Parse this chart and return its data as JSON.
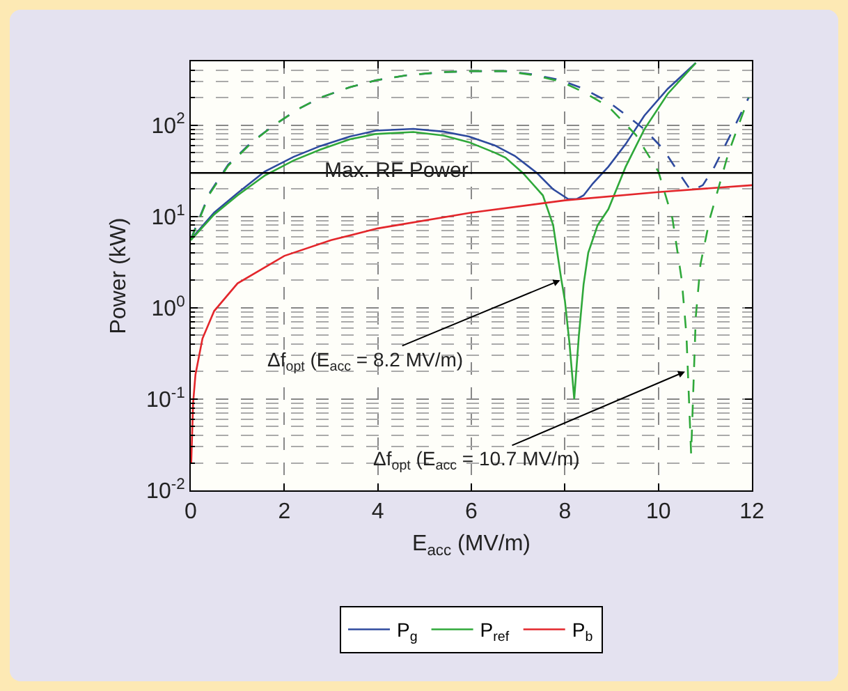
{
  "chart_data": {
    "type": "line",
    "xlabel": "E$_{acc}$ (MV/m)",
    "ylabel": "Power (kW)",
    "log": "y",
    "xlim": [
      0,
      12
    ],
    "xticks": [
      0,
      2,
      4,
      6,
      8,
      10,
      12
    ],
    "ylim": [
      0.01,
      500
    ],
    "yticks": [
      {
        "value": 0.01,
        "label": "10$^{-2}$"
      },
      {
        "value": 0.1,
        "label": "10$^{-1}$"
      },
      {
        "value": 1,
        "label": "10$^{0}$"
      },
      {
        "value": 10,
        "label": "10$^{1}$"
      },
      {
        "value": 100,
        "label": "10$^{2}$"
      }
    ],
    "grid": true,
    "legend": "bottom",
    "line_style": "solid",
    "series": [
      {
        "name": "P$_{g}$",
        "color": "#2e4a9e",
        "x": [
          0,
          0.5,
          1,
          1.58,
          2.2,
          2.77,
          3.4,
          3.96,
          4.76,
          5.4,
          5.95,
          6.5,
          6.93,
          7.4,
          7.74,
          8.07,
          8.25,
          8.4,
          8.6,
          8.93,
          9.3,
          9.7,
          10.2,
          10.8
        ],
        "values": [
          5.6,
          11,
          18,
          31,
          45,
          59,
          75,
          87,
          91,
          85,
          75,
          60,
          46,
          30,
          20,
          15.5,
          15.5,
          17,
          23,
          35,
          62,
          127,
          250,
          480
        ]
      },
      {
        "name": "P$_{ref}$",
        "color": "#2fa83a",
        "x": [
          0,
          0.5,
          1,
          1.58,
          2.2,
          2.77,
          3.4,
          3.96,
          4.76,
          5.4,
          5.95,
          6.5,
          6.73,
          7.1,
          7.53,
          7.75,
          7.92,
          8.0,
          8.1,
          8.2,
          8.3,
          8.4,
          8.5,
          8.7,
          8.93,
          9.3,
          9.7,
          10.2,
          10.8
        ],
        "values": [
          5.5,
          10.5,
          17,
          28,
          41,
          54,
          70,
          80,
          84,
          77,
          65,
          50,
          44,
          30,
          17,
          8,
          2.1,
          1.2,
          0.4,
          0.1,
          0.5,
          1.8,
          4,
          8,
          12,
          35,
          90,
          220,
          480
        ]
      },
      {
        "name": "P$_{b}$",
        "color": "#e3262b",
        "x": [
          0.01,
          0.05,
          0.1,
          0.25,
          0.5,
          1,
          2,
          3,
          4,
          6,
          8,
          10,
          12
        ],
        "values": [
          0.02,
          0.09,
          0.185,
          0.46,
          0.92,
          1.85,
          3.7,
          5.5,
          7.4,
          11,
          15,
          18.5,
          22
        ]
      },
      {
        "color": "#2e4a9e",
        "line_style": "dashed",
        "x": [
          0,
          0.4,
          0.8,
          1.3,
          1.78,
          2.3,
          2.77,
          3.4,
          3.96,
          4.6,
          5.36,
          6.0,
          6.73,
          7.3,
          7.92,
          8.4,
          8.93,
          9.3,
          9.7,
          10.1,
          10.4,
          10.7,
          10.95,
          11.2,
          11.6,
          11.93
        ],
        "values": [
          5.6,
          18,
          37,
          65,
          100,
          150,
          200,
          260,
          310,
          350,
          380,
          390,
          390,
          360,
          310,
          250,
          180,
          130,
          90,
          55,
          32,
          19,
          22,
          35,
          90,
          200
        ]
      },
      {
        "color": "#2fa83a",
        "line_style": "dashed",
        "x": [
          0,
          0.4,
          0.8,
          1.3,
          1.78,
          2.3,
          2.77,
          3.4,
          3.96,
          4.6,
          5.36,
          6.0,
          6.73,
          7.3,
          7.92,
          8.4,
          8.93,
          9.52,
          10.0,
          10.3,
          10.5,
          10.6,
          10.7,
          10.8,
          10.9,
          11.1,
          11.5,
          11.93
        ],
        "values": [
          5.5,
          17.5,
          36,
          64,
          100,
          150,
          200,
          260,
          310,
          350,
          380,
          390,
          390,
          355,
          300,
          230,
          160,
          78,
          31,
          9.5,
          2,
          0.5,
          0.025,
          0.8,
          3,
          9.5,
          50,
          200
        ]
      }
    ],
    "ref_lines": [
      {
        "axis": "y",
        "value": 30,
        "label": "Max. RF Power",
        "color": "#000000"
      }
    ],
    "annotations": [
      {
        "text": "Δf$_{opt}$ (E$_{acc}$ = 8.2 MV/m)",
        "x": 7.9,
        "y": 2
      },
      {
        "text": "Δf$_{opt}$ (E$_{acc}$ = 10.7 MV/m)",
        "x": 10.57,
        "y": 0.2
      }
    ]
  }
}
